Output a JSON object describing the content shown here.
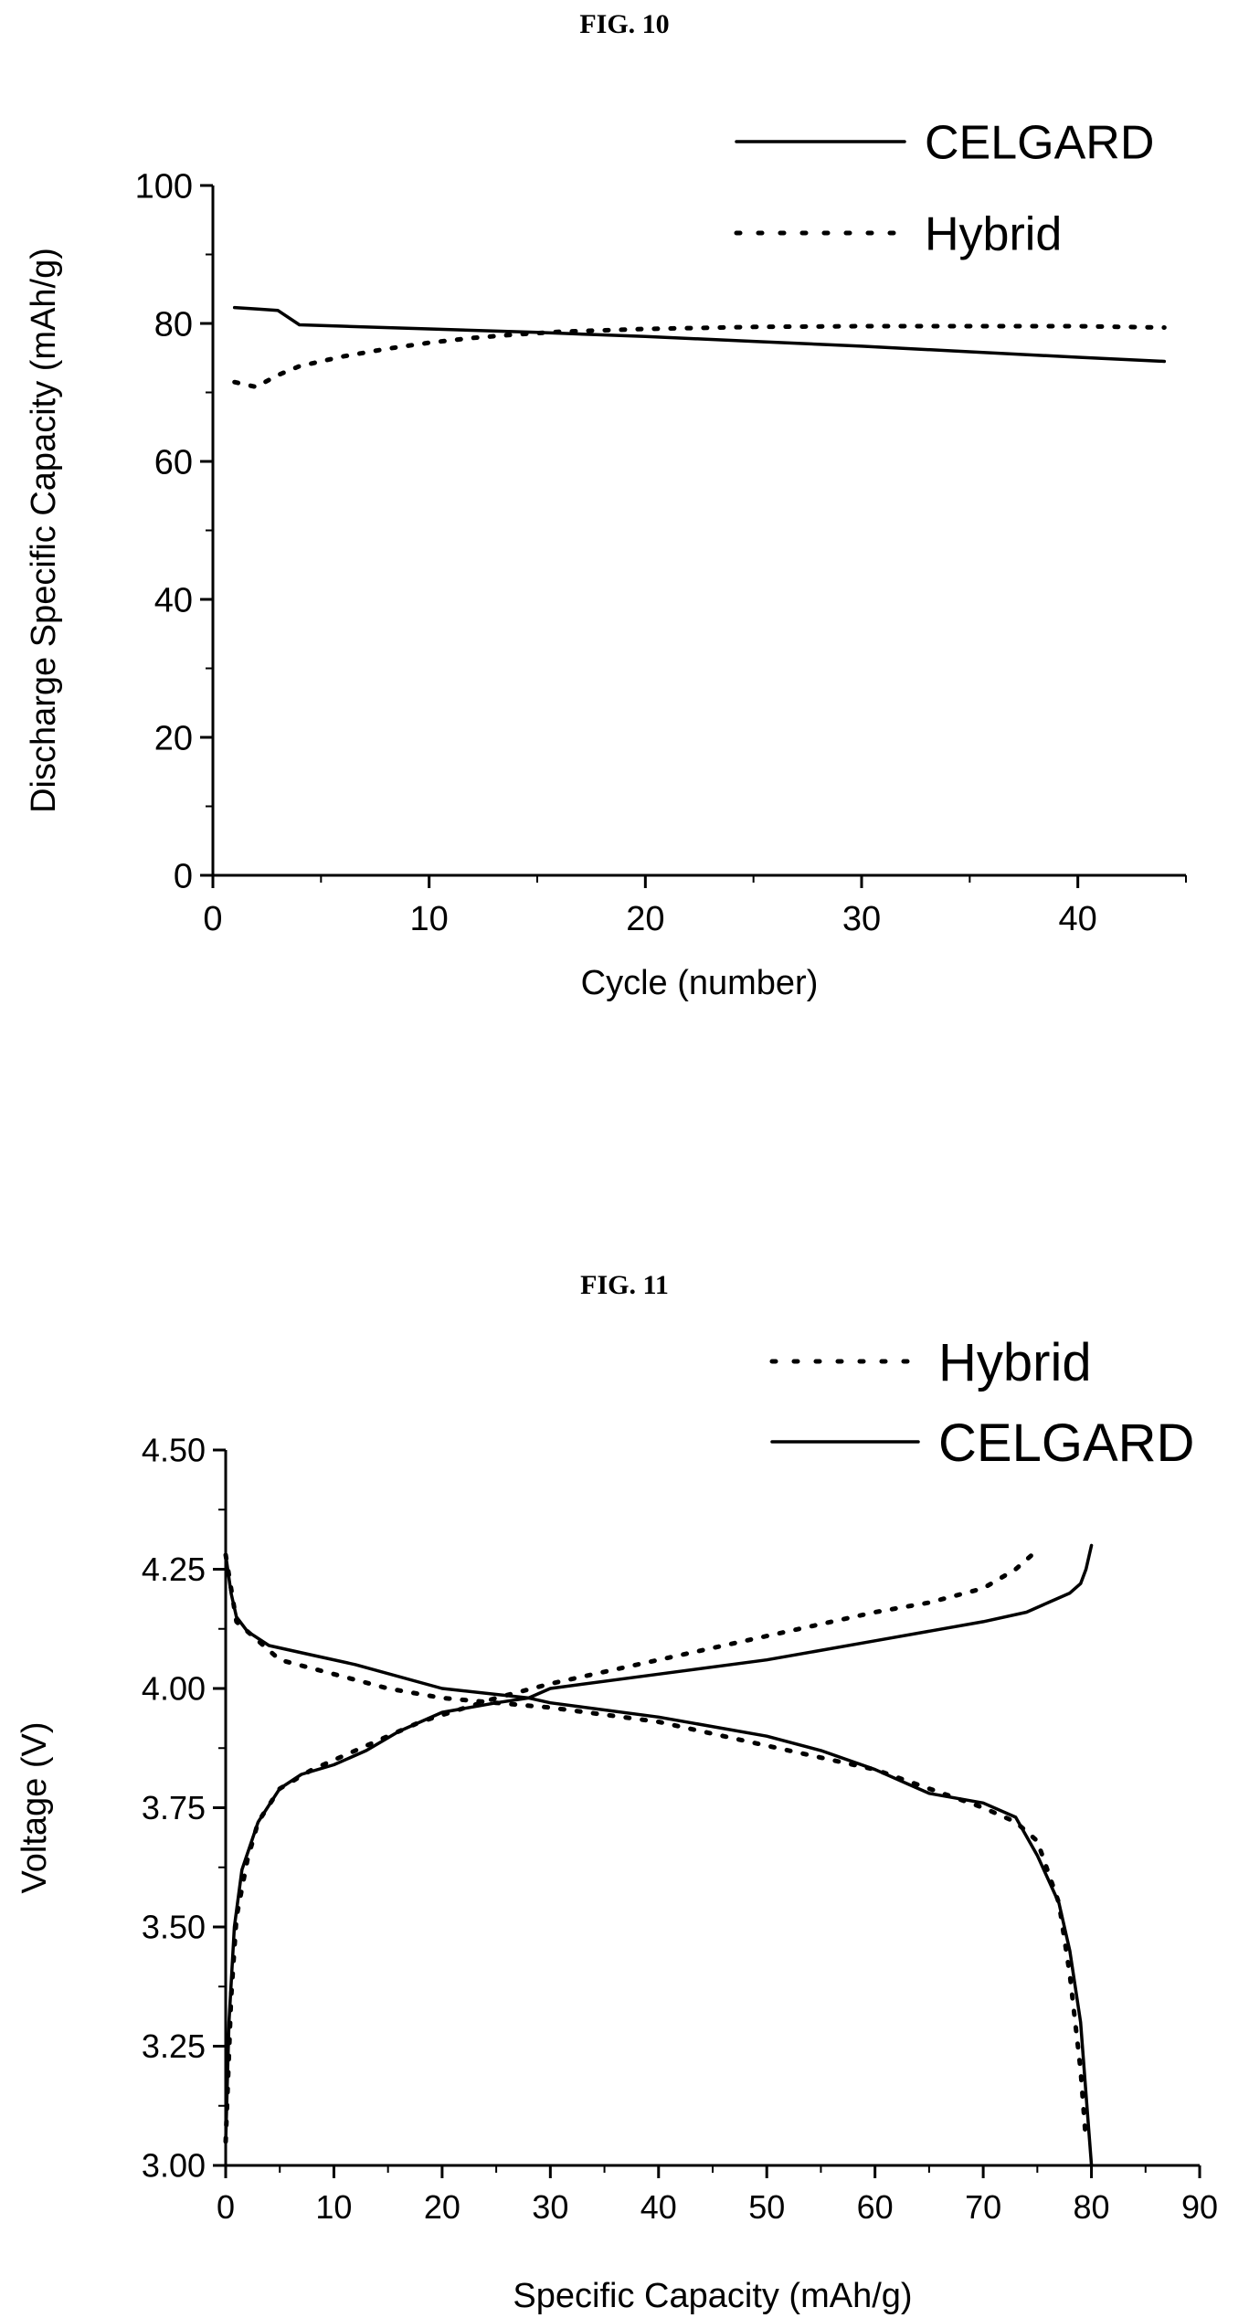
{
  "figures": [
    {
      "label": "FIG. 10"
    },
    {
      "label": "FIG. 11"
    }
  ],
  "chart_data": [
    {
      "type": "line",
      "title": "",
      "xlabel": "Cycle (number)",
      "ylabel": "Discharge Specific Capacity (mAh/g)",
      "xlim": [
        0,
        45
      ],
      "ylim": [
        0,
        100
      ],
      "xticks": [
        0,
        10,
        20,
        30,
        40
      ],
      "yticks": [
        0,
        20,
        40,
        60,
        80,
        100
      ],
      "grid": false,
      "legend_position": "top-right",
      "series": [
        {
          "name": "CELGARD",
          "style": "solid",
          "color": "#000000",
          "x": [
            1,
            2,
            3,
            4,
            6,
            10,
            15,
            20,
            25,
            30,
            35,
            40,
            44
          ],
          "y": [
            82.3,
            82.1,
            81.9,
            79.8,
            79.6,
            79.2,
            78.7,
            78.1,
            77.4,
            76.7,
            75.9,
            75.1,
            74.5
          ]
        },
        {
          "name": "Hybrid",
          "style": "dotted",
          "color": "#000000",
          "x": [
            1,
            2,
            3,
            4,
            6,
            8,
            10,
            12,
            14,
            16,
            20,
            25,
            30,
            35,
            40,
            44
          ],
          "y": [
            71.5,
            70.8,
            72.5,
            73.8,
            75.2,
            76.3,
            77.2,
            77.9,
            78.4,
            78.8,
            79.2,
            79.5,
            79.6,
            79.6,
            79.6,
            79.4
          ]
        }
      ]
    },
    {
      "type": "line",
      "title": "",
      "xlabel": "Specific Capacity (mAh/g)",
      "ylabel": "Voltage (V)",
      "xlim": [
        0,
        90
      ],
      "ylim": [
        3.0,
        4.5
      ],
      "xticks": [
        0,
        10,
        20,
        30,
        40,
        50,
        60,
        70,
        80,
        90
      ],
      "yticks": [
        "3.00",
        "3.25",
        "3.50",
        "3.75",
        "4.00",
        "4.25",
        "4.50"
      ],
      "grid": false,
      "legend_position": "top-right",
      "series": [
        {
          "name": "Hybrid",
          "style": "dotted",
          "color": "#000000",
          "curves": [
            {
              "x": [
                0,
                0.5,
                1,
                2,
                3,
                5,
                8,
                12,
                18,
                25,
                30,
                40,
                50,
                60,
                65,
                70,
                73,
                75
              ],
              "y": [
                3.05,
                3.35,
                3.52,
                3.64,
                3.72,
                3.79,
                3.83,
                3.87,
                3.93,
                3.98,
                4.01,
                4.06,
                4.11,
                4.16,
                4.18,
                4.21,
                4.25,
                4.29
              ]
            },
            {
              "x": [
                0,
                1,
                3,
                5,
                10,
                15,
                20,
                25,
                30,
                40,
                50,
                60,
                65,
                70,
                73,
                75,
                77,
                78,
                79,
                79.5
              ],
              "y": [
                4.28,
                4.14,
                4.1,
                4.06,
                4.03,
                4.0,
                3.98,
                3.97,
                3.96,
                3.93,
                3.88,
                3.83,
                3.79,
                3.75,
                3.72,
                3.68,
                3.55,
                3.4,
                3.2,
                3.05
              ]
            }
          ]
        },
        {
          "name": "CELGARD",
          "style": "solid",
          "color": "#000000",
          "curves": [
            {
              "x": [
                0,
                0.3,
                0.8,
                1.5,
                3,
                5,
                7,
                10,
                13,
                16,
                20,
                25,
                28,
                30,
                40,
                50,
                60,
                70,
                74,
                76,
                78,
                79,
                79.5,
                80
              ],
              "y": [
                3.05,
                3.3,
                3.5,
                3.62,
                3.72,
                3.79,
                3.82,
                3.84,
                3.87,
                3.91,
                3.95,
                3.97,
                3.98,
                4.0,
                4.03,
                4.06,
                4.1,
                4.14,
                4.16,
                4.18,
                4.2,
                4.22,
                4.25,
                4.3
              ]
            },
            {
              "x": [
                0,
                0.5,
                1,
                2,
                4,
                8,
                12,
                20,
                28,
                30,
                40,
                50,
                55,
                60,
                63,
                65,
                70,
                73,
                75,
                77,
                78,
                79,
                79.5,
                80
              ],
              "y": [
                4.28,
                4.2,
                4.15,
                4.12,
                4.09,
                4.07,
                4.05,
                4.0,
                3.98,
                3.97,
                3.94,
                3.9,
                3.87,
                3.83,
                3.8,
                3.78,
                3.76,
                3.73,
                3.65,
                3.55,
                3.45,
                3.3,
                3.15,
                3.0
              ]
            }
          ]
        }
      ]
    }
  ]
}
